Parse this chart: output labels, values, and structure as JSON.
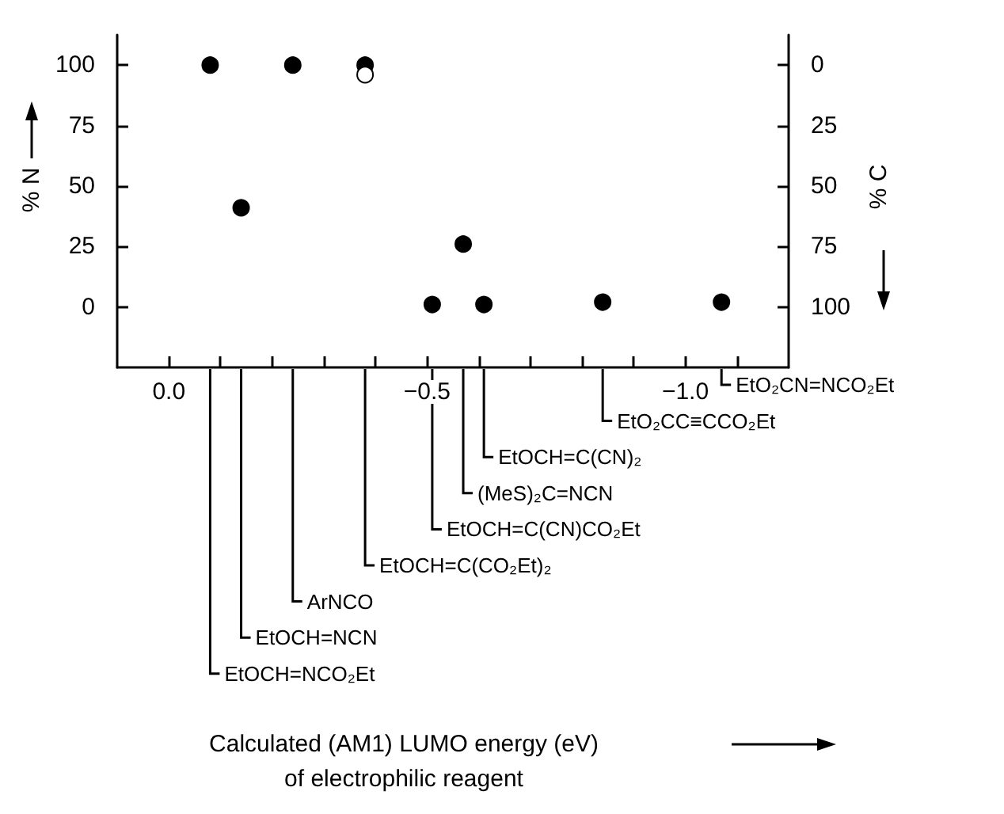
{
  "chart_data": {
    "type": "scatter",
    "ylabel": "% N",
    "y2label": "% C",
    "series": [
      {
        "color": "#000000",
        "x": [
          -0.08,
          -0.14,
          -0.24,
          -0.38,
          -0.51,
          -0.57,
          -0.61,
          -0.84,
          -1.07
        ],
        "values": [
          100,
          41,
          100,
          100,
          1,
          26,
          1,
          2,
          2
        ]
      },
      {
        "color": "#ffffff",
        "x": [
          -0.38
        ],
        "values": [
          96
        ]
      }
    ],
    "xlim": [
      0.1,
      -1.2
    ],
    "xticks": [
      {
        "value": 0,
        "label": "0.0"
      },
      {
        "value": -0.1,
        "label": null
      },
      {
        "value": -0.2,
        "label": null
      },
      {
        "value": -0.3,
        "label": null
      },
      {
        "value": -0.4,
        "label": null
      },
      {
        "value": -0.5,
        "label": "−0.5"
      },
      {
        "value": -0.6,
        "label": null
      },
      {
        "value": -0.7,
        "label": null
      },
      {
        "value": -0.8,
        "label": null
      },
      {
        "value": -0.9,
        "label": null
      },
      {
        "value": -1.0,
        "label": "−1.0"
      },
      {
        "value": -1.1,
        "label": null
      }
    ],
    "ylim": [
      -25,
      112.5
    ],
    "yticks": [
      0,
      25,
      50,
      75,
      100
    ],
    "y2lim": [
      125,
      -12.5
    ],
    "y2ticks": [
      0,
      25,
      50,
      75,
      100
    ],
    "marker": "circle",
    "grid": false,
    "annotations": [
      "EtO₂CN=NCO₂Et",
      "EtO₂CC≡CCO₂Et",
      "EtOCH=C(CN)₂",
      "(MeS)₂C=NCN",
      "EtOCH=C(CN)CO₂Et",
      "EtOCH=C(CO₂Et)₂",
      "ArNCO",
      "EtOCH=NCN",
      "EtOCH=NCO₂Et",
      "Calculated (AM1) LUMO energy (eV)\nof electrophilic reagent"
    ]
  }
}
